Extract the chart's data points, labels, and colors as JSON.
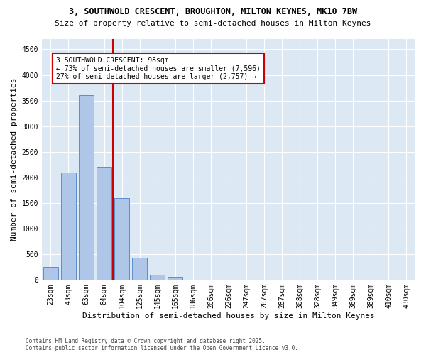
{
  "title1": "3, SOUTHWOLD CRESCENT, BROUGHTON, MILTON KEYNES, MK10 7BW",
  "title2": "Size of property relative to semi-detached houses in Milton Keynes",
  "xlabel": "Distribution of semi-detached houses by size in Milton Keynes",
  "ylabel": "Number of semi-detached properties",
  "footnote": "Contains HM Land Registry data © Crown copyright and database right 2025.\nContains public sector information licensed under the Open Government Licence v3.0.",
  "bar_labels": [
    "23sqm",
    "43sqm",
    "63sqm",
    "84sqm",
    "104sqm",
    "125sqm",
    "145sqm",
    "165sqm",
    "186sqm",
    "206sqm",
    "226sqm",
    "247sqm",
    "267sqm",
    "287sqm",
    "308sqm",
    "328sqm",
    "349sqm",
    "369sqm",
    "389sqm",
    "410sqm",
    "430sqm"
  ],
  "bar_values": [
    250,
    2100,
    3600,
    2200,
    1600,
    430,
    100,
    60,
    0,
    0,
    0,
    0,
    0,
    0,
    0,
    0,
    0,
    0,
    0,
    0,
    0
  ],
  "bar_color": "#aec6e8",
  "bar_edge_color": "#5b8fc9",
  "vline_color": "#cc0000",
  "annotation_title": "3 SOUTHWOLD CRESCENT: 98sqm",
  "annotation_line1": "← 73% of semi-detached houses are smaller (7,596)",
  "annotation_line2": "27% of semi-detached houses are larger (2,757) →",
  "annotation_box_color": "#cc0000",
  "ylim": [
    0,
    4700
  ],
  "yticks": [
    0,
    500,
    1000,
    1500,
    2000,
    2500,
    3000,
    3500,
    4000,
    4500
  ],
  "plot_bg_color": "#dce9f5",
  "title1_fontsize": 8.5,
  "title2_fontsize": 8,
  "xlabel_fontsize": 8,
  "ylabel_fontsize": 8,
  "tick_fontsize": 7,
  "annotation_fontsize": 7,
  "footnote_fontsize": 5.5
}
